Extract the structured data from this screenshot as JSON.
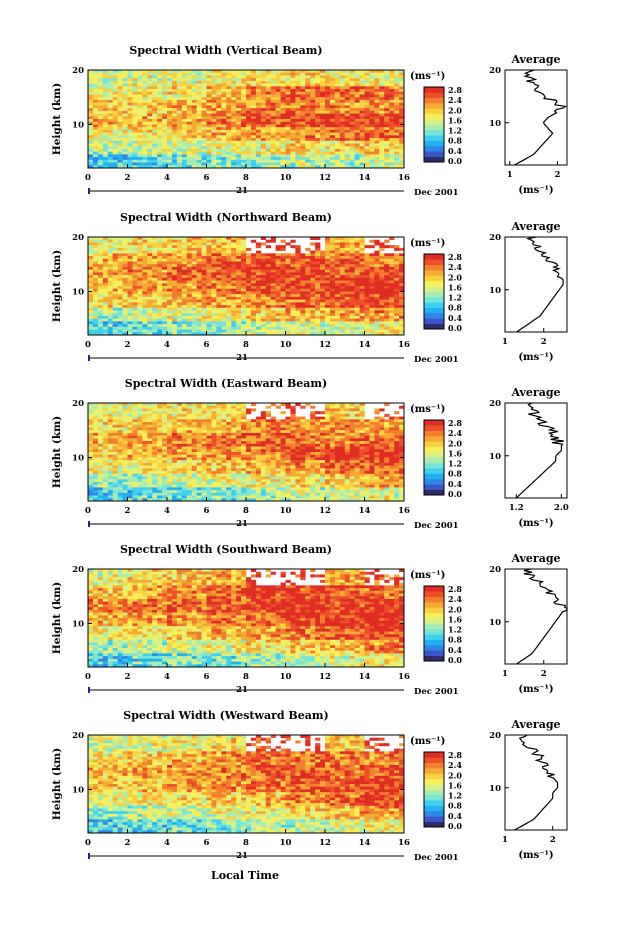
{
  "figure": {
    "xlabel": "Local Time"
  },
  "colorbar": {
    "unit": "(ms⁻¹)",
    "ticks": [
      "0.0",
      "0.4",
      "0.8",
      "1.2",
      "1.6",
      "2.0",
      "2.4",
      "2.8"
    ],
    "colors": [
      "#2e2a6b",
      "#3b55c8",
      "#2f86e6",
      "#21b0f0",
      "#3fd0f0",
      "#76e4d6",
      "#a8ecb0",
      "#d8f088",
      "#f7f05a",
      "#f8d040",
      "#f5aa35",
      "#f27f2e",
      "#ec4f2a",
      "#e02d24"
    ]
  },
  "chart_data": [
    {
      "type": "heatmap",
      "title": "Spectral Width (Vertical Beam)",
      "ylabel": "Height (km)",
      "x_ticks": [
        "0",
        "2",
        "4",
        "6",
        "8",
        "10",
        "12",
        "14",
        "16"
      ],
      "y_ticks": [
        "10",
        "20"
      ],
      "x_range": [
        0,
        16
      ],
      "y_range": [
        2,
        20
      ],
      "date_label": "21",
      "date_suffix": "Dec 2001",
      "colorbar_range": [
        0.0,
        2.8
      ],
      "rows": [
        "20",
        "17",
        "14",
        "11",
        "8",
        "5",
        "2"
      ],
      "cols": [
        "0-2",
        "2-4",
        "4-6",
        "6-8",
        "8-10",
        "10-12",
        "12-14",
        "14-16"
      ],
      "values": [
        [
          1.5,
          1.6,
          1.6,
          1.7,
          1.8,
          1.8,
          1.7,
          1.7
        ],
        [
          1.7,
          1.7,
          1.8,
          2.0,
          2.3,
          2.4,
          2.4,
          2.3
        ],
        [
          1.9,
          1.9,
          2.0,
          2.1,
          2.2,
          2.3,
          2.2,
          2.2
        ],
        [
          2.0,
          2.0,
          2.1,
          2.3,
          2.5,
          2.6,
          2.6,
          2.7
        ],
        [
          1.7,
          1.8,
          1.9,
          2.0,
          2.1,
          2.2,
          2.3,
          2.4
        ],
        [
          1.4,
          1.5,
          1.5,
          1.6,
          1.7,
          1.8,
          1.8,
          1.9
        ],
        [
          0.9,
          1.0,
          1.1,
          1.2,
          1.3,
          1.4,
          1.4,
          1.5
        ]
      ]
    },
    {
      "type": "heatmap",
      "title": "Spectral Width (Northward Beam)",
      "ylabel": "Height (km)",
      "x_ticks": [
        "0",
        "2",
        "4",
        "6",
        "8",
        "10",
        "12",
        "14",
        "16"
      ],
      "y_ticks": [
        "10",
        "20"
      ],
      "x_range": [
        0,
        16
      ],
      "y_range": [
        2,
        20
      ],
      "date_label": "21",
      "date_suffix": "Dec 2001",
      "colorbar_range": [
        0.0,
        2.8
      ],
      "rows": [
        "20",
        "17",
        "14",
        "11",
        "8",
        "5",
        "2"
      ],
      "cols": [
        "0-2",
        "2-4",
        "4-6",
        "6-8",
        "8-10",
        "10-12",
        "12-14",
        "14-16"
      ],
      "values": [
        [
          1.7,
          1.8,
          1.9,
          2.0,
          null,
          null,
          2.1,
          null
        ],
        [
          2.0,
          2.1,
          2.2,
          2.4,
          2.5,
          2.4,
          2.4,
          2.3
        ],
        [
          2.1,
          2.2,
          2.4,
          2.5,
          2.6,
          2.6,
          2.5,
          2.6
        ],
        [
          2.0,
          2.1,
          2.2,
          2.3,
          2.5,
          2.6,
          2.7,
          2.8
        ],
        [
          1.8,
          1.9,
          2.0,
          2.1,
          2.2,
          2.4,
          2.5,
          2.6
        ],
        [
          1.4,
          1.5,
          1.6,
          1.7,
          1.9,
          2.0,
          2.1,
          2.2
        ],
        [
          1.0,
          1.1,
          1.2,
          1.3,
          1.4,
          1.5,
          1.6,
          1.7
        ]
      ]
    },
    {
      "type": "heatmap",
      "title": "Spectral Width (Eastward Beam)",
      "ylabel": "Height (km)",
      "x_ticks": [
        "0",
        "2",
        "4",
        "6",
        "8",
        "10",
        "12",
        "14",
        "16"
      ],
      "y_ticks": [
        "10",
        "20"
      ],
      "x_range": [
        0,
        16
      ],
      "y_range": [
        2,
        20
      ],
      "date_label": "21",
      "date_suffix": "Dec 2001",
      "colorbar_range": [
        0.0,
        2.8
      ],
      "rows": [
        "20",
        "17",
        "14",
        "11",
        "8",
        "5",
        "2"
      ],
      "cols": [
        "0-2",
        "2-4",
        "4-6",
        "6-8",
        "8-10",
        "10-12",
        "12-14",
        "14-16"
      ],
      "values": [
        [
          1.6,
          1.7,
          1.8,
          1.8,
          null,
          null,
          1.9,
          null
        ],
        [
          1.8,
          1.9,
          2.0,
          2.1,
          2.3,
          2.2,
          2.2,
          2.1
        ],
        [
          2.0,
          2.1,
          2.2,
          2.3,
          2.4,
          2.4,
          2.3,
          2.4
        ],
        [
          1.9,
          2.0,
          2.1,
          2.2,
          2.3,
          2.5,
          2.6,
          2.7
        ],
        [
          1.6,
          1.7,
          1.8,
          1.9,
          2.0,
          2.2,
          2.4,
          2.5
        ],
        [
          1.3,
          1.4,
          1.5,
          1.6,
          1.7,
          1.8,
          1.9,
          2.1
        ],
        [
          0.9,
          1.0,
          1.1,
          1.2,
          1.3,
          1.4,
          1.5,
          1.6
        ]
      ]
    },
    {
      "type": "heatmap",
      "title": "Spectral Width (Southward Beam)",
      "ylabel": "Height (km)",
      "x_ticks": [
        "0",
        "2",
        "4",
        "6",
        "8",
        "10",
        "12",
        "14",
        "16"
      ],
      "y_ticks": [
        "10",
        "20"
      ],
      "x_range": [
        0,
        16
      ],
      "y_range": [
        2,
        20
      ],
      "date_label": "21",
      "date_suffix": "Dec 2001",
      "colorbar_range": [
        0.0,
        2.8
      ],
      "rows": [
        "20",
        "17",
        "14",
        "11",
        "8",
        "5",
        "2"
      ],
      "cols": [
        "0-2",
        "2-4",
        "4-6",
        "6-8",
        "8-10",
        "10-12",
        "12-14",
        "14-16"
      ],
      "values": [
        [
          1.6,
          1.8,
          1.9,
          2.0,
          null,
          null,
          2.1,
          null
        ],
        [
          2.0,
          2.1,
          2.2,
          2.4,
          2.6,
          2.6,
          2.5,
          2.4
        ],
        [
          2.2,
          2.3,
          2.4,
          2.5,
          2.6,
          2.7,
          2.6,
          2.7
        ],
        [
          2.0,
          2.1,
          2.2,
          2.3,
          2.4,
          2.6,
          2.7,
          2.8
        ],
        [
          1.7,
          1.8,
          1.9,
          2.0,
          2.1,
          2.3,
          2.5,
          2.6
        ],
        [
          1.3,
          1.4,
          1.5,
          1.6,
          1.8,
          1.9,
          2.0,
          2.2
        ],
        [
          0.9,
          1.0,
          1.1,
          1.2,
          1.3,
          1.4,
          1.6,
          1.7
        ]
      ]
    },
    {
      "type": "heatmap",
      "title": "Spectral Width (Westward Beam)",
      "ylabel": "Height (km)",
      "x_ticks": [
        "0",
        "2",
        "4",
        "6",
        "8",
        "10",
        "12",
        "14",
        "16"
      ],
      "y_ticks": [
        "10",
        "20"
      ],
      "x_range": [
        0,
        16
      ],
      "y_range": [
        2,
        20
      ],
      "date_label": "21",
      "date_suffix": "Dec 2001",
      "colorbar_range": [
        0.0,
        2.8
      ],
      "rows": [
        "20",
        "17",
        "14",
        "11",
        "8",
        "5",
        "2"
      ],
      "cols": [
        "0-2",
        "2-4",
        "4-6",
        "6-8",
        "8-10",
        "10-12",
        "12-14",
        "14-16"
      ],
      "values": [
        [
          1.5,
          1.6,
          1.7,
          1.8,
          null,
          null,
          1.9,
          null
        ],
        [
          1.8,
          1.9,
          2.0,
          2.2,
          2.4,
          2.3,
          2.3,
          2.2
        ],
        [
          2.0,
          2.1,
          2.2,
          2.3,
          2.4,
          2.5,
          2.4,
          2.5
        ],
        [
          1.9,
          2.0,
          2.1,
          2.2,
          2.3,
          2.5,
          2.6,
          2.7
        ],
        [
          1.6,
          1.7,
          1.8,
          1.9,
          2.0,
          2.2,
          2.4,
          2.6
        ],
        [
          1.3,
          1.4,
          1.5,
          1.6,
          1.7,
          1.8,
          2.0,
          2.2
        ],
        [
          0.9,
          1.0,
          1.1,
          1.2,
          1.3,
          1.4,
          1.5,
          1.7
        ]
      ]
    },
    {
      "type": "line",
      "title": "Average",
      "xlabel": "(ms⁻¹)",
      "x_ticks": [
        "1",
        "2"
      ],
      "x_range": [
        0.9,
        2.2
      ],
      "y_ticks": [
        "10",
        "20"
      ],
      "y_range": [
        2,
        20
      ],
      "x": [
        1.1,
        1.3,
        1.5,
        1.6,
        1.7,
        1.8,
        1.9,
        1.8,
        1.7,
        1.8,
        2.0,
        2.1,
        2.0,
        1.7,
        1.5,
        1.4
      ],
      "y": [
        2,
        3,
        4,
        5,
        6,
        7,
        8,
        9,
        10,
        11,
        12,
        13,
        14,
        15,
        17,
        19
      ]
    },
    {
      "type": "line",
      "title": "Average",
      "xlabel": "(ms⁻¹)",
      "x_ticks": [
        "1",
        "2"
      ],
      "x_range": [
        1.0,
        2.6
      ],
      "y_ticks": [
        "10",
        "20"
      ],
      "y_range": [
        2,
        20
      ],
      "x": [
        1.3,
        1.5,
        1.7,
        1.9,
        2.0,
        2.1,
        2.2,
        2.3,
        2.4,
        2.5,
        2.5,
        2.4,
        2.3,
        2.2,
        2.0,
        1.7
      ],
      "y": [
        2,
        3,
        4,
        5,
        6,
        7,
        8,
        9,
        10,
        11,
        12,
        13,
        14,
        15,
        17,
        19
      ]
    },
    {
      "type": "line",
      "title": "Average",
      "xlabel": "(ms⁻¹)",
      "x_ticks": [
        "1.2",
        "2.0"
      ],
      "x_range": [
        1.0,
        2.1
      ],
      "y_ticks": [
        "10",
        "20"
      ],
      "y_range": [
        2,
        20
      ],
      "x": [
        1.2,
        1.3,
        1.4,
        1.5,
        1.6,
        1.7,
        1.8,
        1.9,
        1.9,
        2.0,
        2.0,
        1.9,
        1.9,
        1.8,
        1.6,
        1.4
      ],
      "y": [
        2,
        3,
        4,
        5,
        6,
        7,
        8,
        9,
        10,
        11,
        12,
        13,
        14,
        15,
        17,
        19
      ]
    },
    {
      "type": "line",
      "title": "Average",
      "xlabel": "(ms⁻¹)",
      "x_ticks": [
        "1",
        "2"
      ],
      "x_range": [
        1.0,
        2.6
      ],
      "y_ticks": [
        "10",
        "20"
      ],
      "y_range": [
        2,
        20
      ],
      "x": [
        1.3,
        1.5,
        1.7,
        1.8,
        1.9,
        2.0,
        2.1,
        2.2,
        2.3,
        2.4,
        2.5,
        2.5,
        2.3,
        2.2,
        2.0,
        1.6
      ],
      "y": [
        2,
        3,
        4,
        5,
        6,
        7,
        8,
        9,
        10,
        11,
        12,
        13,
        14,
        15,
        17,
        19
      ]
    },
    {
      "type": "line",
      "title": "Average",
      "xlabel": "(ms⁻¹)",
      "x_ticks": [
        "1",
        "2"
      ],
      "x_range": [
        1.0,
        2.3
      ],
      "y_ticks": [
        "10",
        "20"
      ],
      "y_range": [
        2,
        20
      ],
      "x": [
        1.2,
        1.4,
        1.6,
        1.7,
        1.8,
        1.9,
        2.0,
        2.0,
        2.1,
        2.1,
        2.0,
        1.9,
        1.9,
        1.8,
        1.6,
        1.4
      ],
      "y": [
        2,
        3,
        4,
        5,
        6,
        7,
        8,
        9,
        10,
        11,
        12,
        13,
        14,
        15,
        17,
        19
      ]
    }
  ]
}
